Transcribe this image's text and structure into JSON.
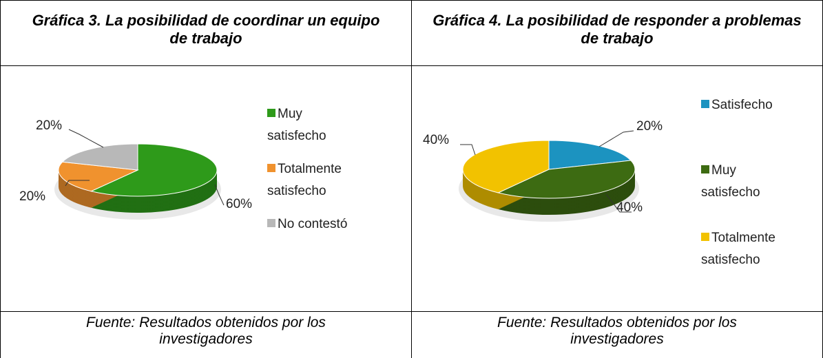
{
  "chart_data": [
    {
      "type": "pie",
      "title": "Gráfica 3. La posibilidad de coordinar un equipo de trabajo",
      "categories": [
        "Muy satisfecho",
        "Totalmente satisfecho",
        "No contestó"
      ],
      "values": [
        60,
        20,
        20
      ],
      "value_labels": [
        "60%",
        "20%",
        "20%"
      ],
      "colors": [
        "#2e9a1a",
        "#f0922e",
        "#b8b8b8"
      ],
      "source": "Fuente: Resultados obtenidos por los investigadores"
    },
    {
      "type": "pie",
      "title": "Gráfica 4. La posibilidad de responder a problemas de trabajo",
      "categories": [
        "Satisfecho",
        "Muy satisfecho",
        "Totalmente satisfecho"
      ],
      "values": [
        20,
        40,
        40
      ],
      "value_labels": [
        "20%",
        "40%",
        "40%"
      ],
      "colors": [
        "#1c93c0",
        "#3d6b12",
        "#f2c200"
      ],
      "source": "Fuente: Resultados obtenidos por los investigadores"
    }
  ]
}
